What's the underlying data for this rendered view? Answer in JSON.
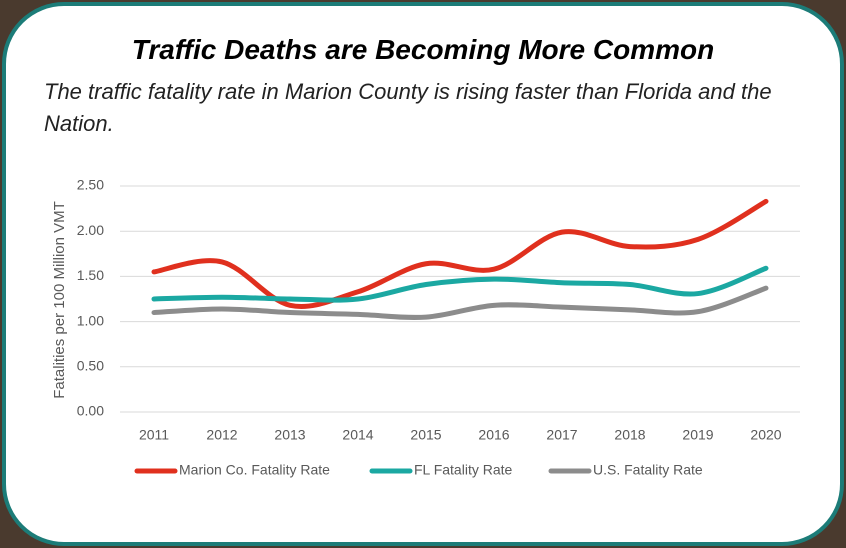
{
  "chart_data": {
    "type": "line",
    "title": "Traffic Deaths are Becoming More Common",
    "subtitle": "The traffic fatality rate in Marion County is rising faster than Florida and the Nation.",
    "y_label": "Fatalities per 100 Million VMT",
    "categories": [
      "2011",
      "2012",
      "2013",
      "2014",
      "2015",
      "2016",
      "2017",
      "2018",
      "2019",
      "2020"
    ],
    "series": [
      {
        "name": "Marion Co. Fatality Rate",
        "color": "#e0301e",
        "values": [
          1.55,
          1.66,
          1.18,
          1.33,
          1.64,
          1.58,
          1.99,
          1.83,
          1.91,
          2.33
        ]
      },
      {
        "name": "FL Fatality Rate",
        "color": "#1ba8a2",
        "values": [
          1.25,
          1.27,
          1.25,
          1.25,
          1.41,
          1.47,
          1.43,
          1.41,
          1.31,
          1.59
        ]
      },
      {
        "name": "U.S. Fatality Rate",
        "color": "#8c8c8c",
        "values": [
          1.1,
          1.14,
          1.1,
          1.08,
          1.05,
          1.18,
          1.16,
          1.13,
          1.11,
          1.37
        ]
      }
    ],
    "ylim": [
      0,
      2.5
    ],
    "yticks": [
      {
        "value": 0,
        "label": "0.00"
      },
      {
        "value": 0.5,
        "label": "0.50"
      },
      {
        "value": 1,
        "label": "1.00"
      },
      {
        "value": 1.5,
        "label": "1.50"
      },
      {
        "value": 2,
        "label": "2.00"
      },
      {
        "value": 2.5,
        "label": "2.50"
      }
    ],
    "grid": true,
    "smooth": true,
    "legend": "bottom"
  }
}
